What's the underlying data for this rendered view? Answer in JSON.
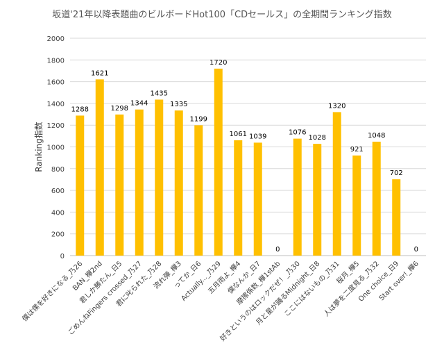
{
  "chart_data": {
    "type": "bar",
    "title": "坂道'21年以降表題曲のビルボードHot100「CDセールス」の全期間ランキング指数",
    "xlabel": "",
    "ylabel": "Ranking指数",
    "ylim": [
      0,
      2000
    ],
    "yticks": [
      "0",
      "200",
      "400",
      "600",
      "800",
      "1000",
      "1200",
      "1400",
      "1600",
      "1800",
      "2000"
    ],
    "grid": true,
    "legend": "none",
    "colors": {
      "bar": "#FFC000",
      "grid": "#D9D9D9",
      "axis": "#BFBFBF",
      "text": "#404040"
    },
    "categories": [
      "僕は僕を好きになる_乃26",
      "BAN_欅2nd",
      "君しか勝たん_日5",
      "ごめんねFingers crossed_乃27",
      "君に叱られた_乃28",
      "流れ弾_欅3",
      "ってか_日6",
      "Actually..._乃29",
      "五月雨よ_欅4",
      "僕なんか_日7",
      "摩擦係数_欅1stAb",
      "好きというのはロックだぜ！_乃30",
      "月と星が踊るMidnight_日8",
      "ここにはないもの_乃31",
      "桜月_欅5",
      "人は夢を二度見る_乃32",
      "One choice_日9",
      "Start over!_欅6"
    ],
    "values": [
      1288,
      1621,
      1298,
      1344,
      1435,
      1335,
      1199,
      1720,
      1061,
      1039,
      0,
      1076,
      1028,
      1320,
      921,
      1048,
      702,
      0
    ],
    "value_labels": [
      "1288",
      "1621",
      "1298",
      "1344",
      "1435",
      "1335",
      "1199",
      "1720",
      "1061",
      "1039",
      "0",
      "1076",
      "1028",
      "1320",
      "921",
      "1048",
      "702",
      "0"
    ]
  }
}
